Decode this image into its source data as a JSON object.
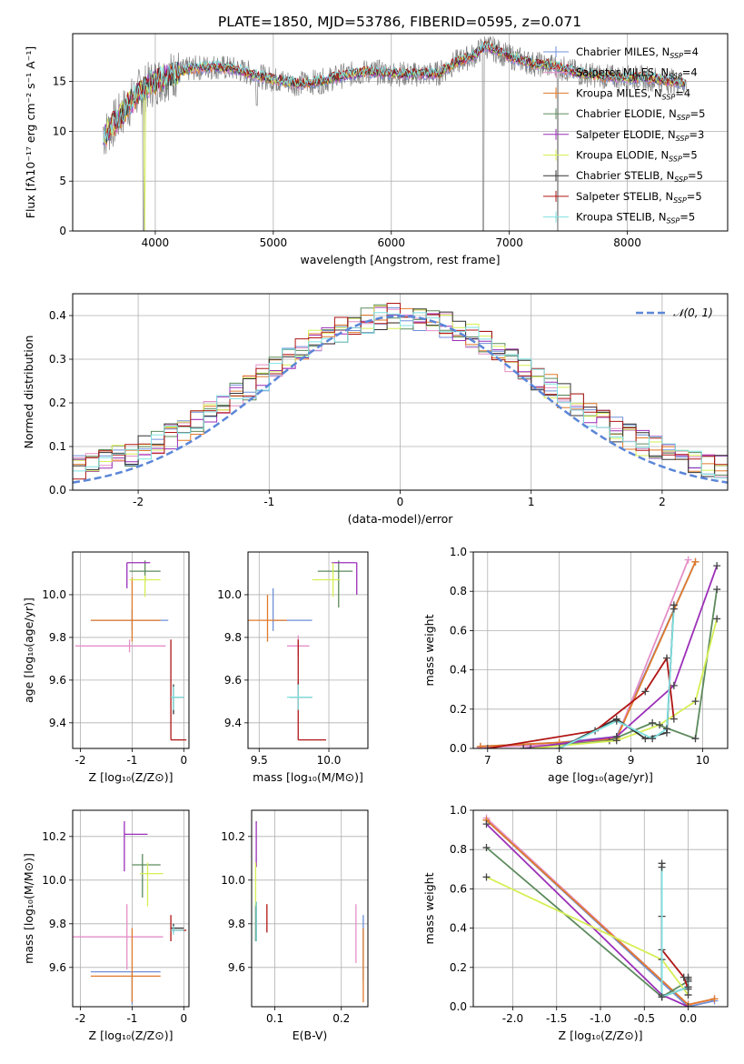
{
  "title": "PLATE=1850, MJD=53786, FIBERID=0595, z=0.071",
  "colors": {
    "chabrier_miles": "#6f8fd8",
    "salpeter_miles": "#e58fc8",
    "kroupa_miles": "#e07a2a",
    "chabrier_elodie": "#5c8a5c",
    "salpeter_elodie": "#9b2fb8",
    "kroupa_elodie": "#d6ef55",
    "chabrier_stelib": "#333333",
    "salpeter_stelib": "#b01515",
    "kroupa_stelib": "#7fe0e0",
    "data": "#808080",
    "normal": "#5b86d8"
  },
  "legend_spectrum": [
    {
      "key": "chabrier_miles",
      "label": "Chabrier MILES, N",
      "sub": "SSP",
      "val": "=4"
    },
    {
      "key": "salpeter_miles",
      "label": "Salpeter MILES, N",
      "sub": "SSP",
      "val": "=4"
    },
    {
      "key": "kroupa_miles",
      "label": "Kroupa MILES, N",
      "sub": "SSP",
      "val": "=4"
    },
    {
      "key": "chabrier_elodie",
      "label": "Chabrier ELODIE, N",
      "sub": "SSP",
      "val": "=5"
    },
    {
      "key": "salpeter_elodie",
      "label": "Salpeter ELODIE, N",
      "sub": "SSP",
      "val": "=3"
    },
    {
      "key": "kroupa_elodie",
      "label": "Kroupa ELODIE, N",
      "sub": "SSP",
      "val": "=5"
    },
    {
      "key": "chabrier_stelib",
      "label": "Chabrier STELIB, N",
      "sub": "SSP",
      "val": "=5"
    },
    {
      "key": "salpeter_stelib",
      "label": "Salpeter STELIB, N",
      "sub": "SSP",
      "val": "=5"
    },
    {
      "key": "kroupa_stelib",
      "label": "Kroupa STELIB, N",
      "sub": "SSP",
      "val": "=5"
    }
  ],
  "chart_data": [
    {
      "id": "spectrum",
      "type": "line",
      "xlabel": "wavelength [Angstrom, rest frame]",
      "ylabel": "Flux [fλ10⁻¹⁷ erg cm⁻² s⁻¹ A⁻¹]",
      "xlim": [
        3300,
        8850
      ],
      "ylim": [
        0,
        19.8
      ],
      "xticks": [
        4000,
        5000,
        6000,
        7000,
        8000
      ],
      "yticks": [
        0,
        5,
        10,
        15
      ],
      "continuum_x": [
        3560,
        3700,
        3850,
        4000,
        4100,
        4300,
        4500,
        4700,
        4860,
        5000,
        5200,
        5400,
        5600,
        5800,
        6000,
        6200,
        6400,
        6560,
        6700,
        6800,
        7000,
        7200,
        7400,
        7600,
        7800,
        8000,
        8200,
        8400,
        8500
      ],
      "continuum_y": [
        9.5,
        11.5,
        13.8,
        15.0,
        15.5,
        16.3,
        16.5,
        16.2,
        15.6,
        15.2,
        14.8,
        15.0,
        15.6,
        16.0,
        15.8,
        15.7,
        15.8,
        17.0,
        17.6,
        18.6,
        17.5,
        16.8,
        16.5,
        15.8,
        15.5,
        15.4,
        15.3,
        15.0,
        14.8
      ]
    },
    {
      "id": "residual_hist",
      "type": "step",
      "xlabel": "(data-model)/error",
      "ylabel": "Normed distribution",
      "xlim": [
        -2.5,
        2.5
      ],
      "ylim": [
        0,
        0.45
      ],
      "xticks": [
        -2,
        -1,
        0,
        1,
        2
      ],
      "yticks": [
        0.0,
        0.1,
        0.2,
        0.3,
        0.4
      ],
      "legend": "𝒩(0, 1)",
      "bin_width": 0.1
    },
    {
      "id": "age_vs_Z",
      "type": "errorbar",
      "xlabel": "Z [log₁₀(Z/Z⊙)]",
      "ylabel": "age  [log₁₀(age/yr)]",
      "xlim": [
        -2.15,
        0.1
      ],
      "ylim": [
        9.28,
        10.2
      ],
      "xticks": [
        -2,
        -1,
        0
      ],
      "yticks": [
        9.4,
        9.6,
        9.8,
        10.0
      ],
      "points": [
        {
          "key": "chabrier_miles",
          "x": -1.0,
          "xerr": [
            0.8,
            0.7
          ],
          "y": 9.88,
          "yerr": [
            0.05,
            0.05
          ]
        },
        {
          "key": "salpeter_miles",
          "x": -1.05,
          "xerr": [
            1.05,
            0.7
          ],
          "y": 9.76,
          "yerr": [
            0.03,
            0.03
          ]
        },
        {
          "key": "kroupa_miles",
          "x": -1.0,
          "xerr": [
            0.8,
            0.55
          ],
          "y": 9.88,
          "yerr": [
            0.1,
            0.2
          ]
        },
        {
          "key": "chabrier_elodie",
          "x": -0.75,
          "xerr": [
            0.3,
            0.3
          ],
          "y": 10.11,
          "yerr": [
            0.05,
            0.05
          ]
        },
        {
          "key": "salpeter_elodie",
          "x": -1.1,
          "xerr": [
            0.0,
            0.45
          ],
          "y": 10.15,
          "yerr": [
            0.12,
            0.0
          ]
        },
        {
          "key": "kroupa_elodie",
          "x": -0.75,
          "xerr": [
            0.3,
            0.3
          ],
          "y": 10.07,
          "yerr": [
            0.08,
            0.02
          ]
        },
        {
          "key": "chabrier_stelib",
          "x": -0.2,
          "xerr": [
            0.05,
            0.2
          ],
          "y": 9.52,
          "yerr": [
            0.08,
            0.06
          ]
        },
        {
          "key": "salpeter_stelib",
          "x": -0.25,
          "xerr": [
            0.0,
            0.3
          ],
          "y": 9.32,
          "yerr": [
            0.0,
            0.47
          ]
        },
        {
          "key": "kroupa_stelib",
          "x": -0.2,
          "xerr": [
            0.05,
            0.2
          ],
          "y": 9.52,
          "yerr": [
            0.06,
            0.05
          ]
        }
      ]
    },
    {
      "id": "age_vs_mass",
      "type": "errorbar",
      "xlabel": "mass [log₁₀(M/M⊙)]",
      "ylabel": "",
      "xlim": [
        9.42,
        10.28
      ],
      "ylim": [
        9.28,
        10.2
      ],
      "xticks": [
        9.5,
        10.0
      ],
      "yticks": [
        9.4,
        9.6,
        9.8,
        10.0
      ],
      "points": [
        {
          "key": "chabrier_miles",
          "x": 9.6,
          "xerr": [
            0.0,
            0.28
          ],
          "y": 9.88,
          "yerr": [
            0.05,
            0.15
          ]
        },
        {
          "key": "salpeter_miles",
          "x": 9.78,
          "xerr": [
            0.08,
            0.08
          ],
          "y": 9.76,
          "yerr": [
            0.05,
            0.05
          ]
        },
        {
          "key": "kroupa_miles",
          "x": 9.56,
          "xerr": [
            0.14,
            0.14
          ],
          "y": 9.88,
          "yerr": [
            0.1,
            0.12
          ]
        },
        {
          "key": "chabrier_elodie",
          "x": 10.07,
          "xerr": [
            0.15,
            0.1
          ],
          "y": 10.11,
          "yerr": [
            0.17,
            0.05
          ]
        },
        {
          "key": "salpeter_elodie",
          "x": 10.2,
          "xerr": [
            0.18,
            0.0
          ],
          "y": 10.15,
          "yerr": [
            0.15,
            0.0
          ]
        },
        {
          "key": "kroupa_elodie",
          "x": 10.03,
          "xerr": [
            0.15,
            0.05
          ],
          "y": 10.07,
          "yerr": [
            0.08,
            0.08
          ]
        },
        {
          "key": "chabrier_stelib",
          "x": 9.78,
          "xerr": [
            0.06,
            0.1
          ],
          "y": 9.52,
          "yerr": [
            0.06,
            0.07
          ]
        },
        {
          "key": "salpeter_stelib",
          "x": 9.78,
          "xerr": [
            0.0,
            0.2
          ],
          "y": 9.32,
          "yerr": [
            0.0,
            0.47
          ]
        },
        {
          "key": "kroupa_stelib",
          "x": 9.78,
          "xerr": [
            0.08,
            0.1
          ],
          "y": 9.52,
          "yerr": [
            0.06,
            0.06
          ]
        }
      ]
    },
    {
      "id": "weight_vs_age",
      "type": "line",
      "xlabel": "age  [log₁₀(age/yr)]",
      "ylabel": "mass weight",
      "xlim": [
        6.8,
        10.35
      ],
      "ylim": [
        0,
        1
      ],
      "xticks": [
        7,
        8,
        9,
        10
      ],
      "yticks": [
        0.0,
        0.2,
        0.4,
        0.6,
        0.8,
        1.0
      ],
      "series": [
        {
          "key": "chabrier_miles",
          "x": [
            6.9,
            8.0,
            8.8,
            9.9
          ],
          "y": [
            0.01,
            0.03,
            0.06,
            0.95
          ]
        },
        {
          "key": "salpeter_miles",
          "x": [
            6.9,
            8.0,
            8.8,
            9.8
          ],
          "y": [
            0.005,
            0.02,
            0.05,
            0.96
          ]
        },
        {
          "key": "kroupa_miles",
          "x": [
            6.9,
            8.0,
            8.8,
            9.9
          ],
          "y": [
            0.01,
            0.03,
            0.05,
            0.95
          ]
        },
        {
          "key": "chabrier_elodie",
          "x": [
            7.5,
            8.7,
            9.3,
            9.9,
            10.2
          ],
          "y": [
            0.0,
            0.04,
            0.13,
            0.05,
            0.81
          ]
        },
        {
          "key": "salpeter_elodie",
          "x": [
            7.5,
            8.8,
            9.6,
            10.2
          ],
          "y": [
            0.0,
            0.06,
            0.32,
            0.93
          ]
        },
        {
          "key": "kroupa_elodie",
          "x": [
            7.6,
            8.8,
            9.4,
            9.9,
            10.2
          ],
          "y": [
            0.0,
            0.04,
            0.12,
            0.24,
            0.66
          ]
        },
        {
          "key": "chabrier_stelib",
          "x": [
            8.0,
            8.8,
            9.2,
            9.5,
            9.6
          ],
          "y": [
            0.0,
            0.15,
            0.05,
            0.08,
            0.73
          ]
        },
        {
          "key": "salpeter_stelib",
          "x": [
            7.0,
            8.5,
            9.2,
            9.5,
            9.6
          ],
          "y": [
            0.0,
            0.09,
            0.29,
            0.46,
            0.15
          ]
        },
        {
          "key": "kroupa_stelib",
          "x": [
            8.0,
            8.8,
            9.3,
            9.5,
            9.6
          ],
          "y": [
            0.0,
            0.14,
            0.05,
            0.1,
            0.71
          ]
        }
      ]
    },
    {
      "id": "mass_vs_Z",
      "type": "errorbar",
      "xlabel": "Z [log₁₀(Z/Z⊙)]",
      "ylabel": "mass [log₁₀(M/M⊙)]",
      "xlim": [
        -2.15,
        0.1
      ],
      "ylim": [
        9.42,
        10.32
      ],
      "xticks": [
        -2,
        -1,
        0
      ],
      "yticks": [
        9.6,
        9.8,
        10.0,
        10.2
      ],
      "points": [
        {
          "key": "chabrier_miles",
          "x": -1.0,
          "xerr": [
            0.8,
            0.55
          ],
          "y": 9.58,
          "yerr": [
            0.15,
            0.0
          ]
        },
        {
          "key": "salpeter_miles",
          "x": -1.1,
          "xerr": [
            1.05,
            0.7
          ],
          "y": 9.74,
          "yerr": [
            0.15,
            0.15
          ]
        },
        {
          "key": "kroupa_miles",
          "x": -1.0,
          "xerr": [
            0.8,
            0.55
          ],
          "y": 9.56,
          "yerr": [
            0.12,
            0.22
          ]
        },
        {
          "key": "chabrier_elodie",
          "x": -0.8,
          "xerr": [
            0.2,
            0.35
          ],
          "y": 10.07,
          "yerr": [
            0.15,
            0.05
          ]
        },
        {
          "key": "salpeter_elodie",
          "x": -1.15,
          "xerr": [
            0.0,
            0.45
          ],
          "y": 10.21,
          "yerr": [
            0.17,
            0.06
          ]
        },
        {
          "key": "kroupa_elodie",
          "x": -0.7,
          "xerr": [
            0.15,
            0.3
          ],
          "y": 10.03,
          "yerr": [
            0.15,
            0.05
          ]
        },
        {
          "key": "chabrier_stelib",
          "x": -0.2,
          "xerr": [
            0.05,
            0.2
          ],
          "y": 9.78,
          "yerr": [
            0.02,
            0.02
          ]
        },
        {
          "key": "salpeter_stelib",
          "x": -0.25,
          "xerr": [
            0.0,
            0.3
          ],
          "y": 9.77,
          "yerr": [
            0.05,
            0.07
          ]
        },
        {
          "key": "kroupa_stelib",
          "x": -0.2,
          "xerr": [
            0.05,
            0.2
          ],
          "y": 9.77,
          "yerr": [
            0.02,
            0.02
          ]
        }
      ]
    },
    {
      "id": "mass_vs_EBV",
      "type": "errorbar",
      "xlabel": "E(B-V)",
      "ylabel": "",
      "xlim": [
        0.065,
        0.24
      ],
      "ylim": [
        9.42,
        10.32
      ],
      "xticks": [
        0.1,
        0.2
      ],
      "yticks": [
        9.6,
        9.8,
        10.0,
        10.2
      ],
      "points": [
        {
          "key": "chabrier_miles",
          "x": 0.233,
          "xerr": [
            0,
            0
          ],
          "y": 9.74,
          "yerr": [
            0.2,
            0.1
          ]
        },
        {
          "key": "salpeter_miles",
          "x": 0.222,
          "xerr": [
            0,
            0
          ],
          "y": 9.76,
          "yerr": [
            0.14,
            0.13
          ]
        },
        {
          "key": "kroupa_miles",
          "x": 0.233,
          "xerr": [
            0,
            0
          ],
          "y": 9.56,
          "yerr": [
            0.12,
            0.22
          ]
        },
        {
          "key": "chabrier_elodie",
          "x": 0.071,
          "xerr": [
            0,
            0
          ],
          "y": 9.82,
          "yerr": [
            0.1,
            0.07
          ]
        },
        {
          "key": "salpeter_elodie",
          "x": 0.072,
          "xerr": [
            0,
            0
          ],
          "y": 10.15,
          "yerr": [
            0.09,
            0.12
          ]
        },
        {
          "key": "kroupa_elodie",
          "x": 0.071,
          "xerr": [
            0,
            0
          ],
          "y": 10.0,
          "yerr": [
            0.12,
            0.08
          ]
        },
        {
          "key": "chabrier_stelib",
          "x": 0.072,
          "xerr": [
            0,
            0
          ],
          "y": 9.8,
          "yerr": [
            0.08,
            0.1
          ]
        },
        {
          "key": "salpeter_stelib",
          "x": 0.088,
          "xerr": [
            0,
            0
          ],
          "y": 9.81,
          "yerr": [
            0.05,
            0.08
          ]
        },
        {
          "key": "kroupa_stelib",
          "x": 0.072,
          "xerr": [
            0,
            0
          ],
          "y": 9.8,
          "yerr": [
            0.08,
            0.1
          ]
        }
      ]
    },
    {
      "id": "weight_vs_Z",
      "type": "line",
      "xlabel": "Z [log₁₀(Z/Z⊙)]",
      "ylabel": "mass weight",
      "xlim": [
        -2.45,
        0.45
      ],
      "ylim": [
        0,
        1
      ],
      "xticks": [
        -2.0,
        -1.5,
        -1.0,
        -0.5,
        0.0
      ],
      "yticks": [
        0.0,
        0.2,
        0.4,
        0.6,
        0.8,
        1.0
      ],
      "series": [
        {
          "key": "chabrier_miles",
          "x": [
            -2.3,
            0.0,
            0.3
          ],
          "y": [
            0.95,
            0.0,
            0.03
          ]
        },
        {
          "key": "salpeter_miles",
          "x": [
            -2.3,
            0.0,
            0.3
          ],
          "y": [
            0.96,
            0.01,
            0.04
          ]
        },
        {
          "key": "kroupa_miles",
          "x": [
            -2.3,
            0.0,
            0.3
          ],
          "y": [
            0.95,
            0.01,
            0.04
          ]
        },
        {
          "key": "chabrier_elodie",
          "x": [
            -2.3,
            -0.3,
            0.0
          ],
          "y": [
            0.81,
            0.05,
            0.13
          ]
        },
        {
          "key": "salpeter_elodie",
          "x": [
            -2.3,
            -0.3,
            0.0
          ],
          "y": [
            0.93,
            0.06,
            0.0
          ]
        },
        {
          "key": "kroupa_elodie",
          "x": [
            -2.3,
            -0.3,
            0.0
          ],
          "y": [
            0.66,
            0.24,
            0.06
          ]
        },
        {
          "key": "chabrier_stelib",
          "x": [
            -0.3,
            -0.3,
            0.0,
            0.0
          ],
          "y": [
            0.73,
            0.05,
            0.1,
            0.15
          ]
        },
        {
          "key": "salpeter_stelib",
          "x": [
            -0.3,
            -0.3,
            -0.05,
            0.0
          ],
          "y": [
            0.46,
            0.29,
            0.15,
            0.09
          ]
        },
        {
          "key": "kroupa_stelib",
          "x": [
            -0.3,
            -0.3,
            0.0,
            0.0
          ],
          "y": [
            0.71,
            0.05,
            0.1,
            0.14
          ]
        }
      ]
    }
  ]
}
